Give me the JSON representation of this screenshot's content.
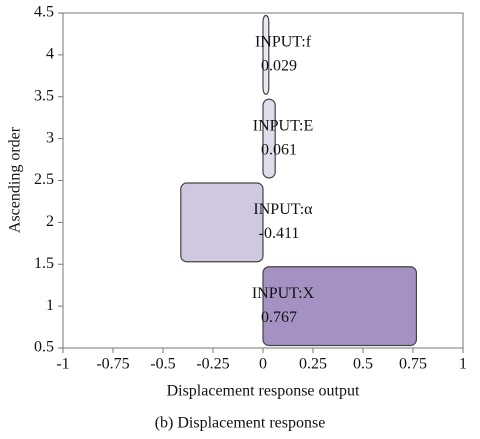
{
  "chart_data": {
    "type": "hbar",
    "categories": [
      "INPUT:X",
      "INPUT:α",
      "INPUT:E",
      "INPUT:f"
    ],
    "values": [
      0.767,
      -0.411,
      0.061,
      0.029
    ],
    "colors": [
      "#a592c3",
      "#d0c7e1",
      "#e1dcec",
      "#ece8f3"
    ],
    "xlabel": "Displacement response output",
    "ylabel": "Ascending order",
    "caption": "(b) Displacement response",
    "xlim": [
      -1,
      1
    ],
    "xticks": [
      -1,
      -0.75,
      -0.5,
      -0.25,
      0,
      0.25,
      0.5,
      0.75,
      1
    ],
    "ylim": [
      0.5,
      4.5
    ],
    "yticks": [
      0.5,
      1,
      1.5,
      2,
      2.5,
      3,
      3.5,
      4,
      4.5
    ]
  }
}
